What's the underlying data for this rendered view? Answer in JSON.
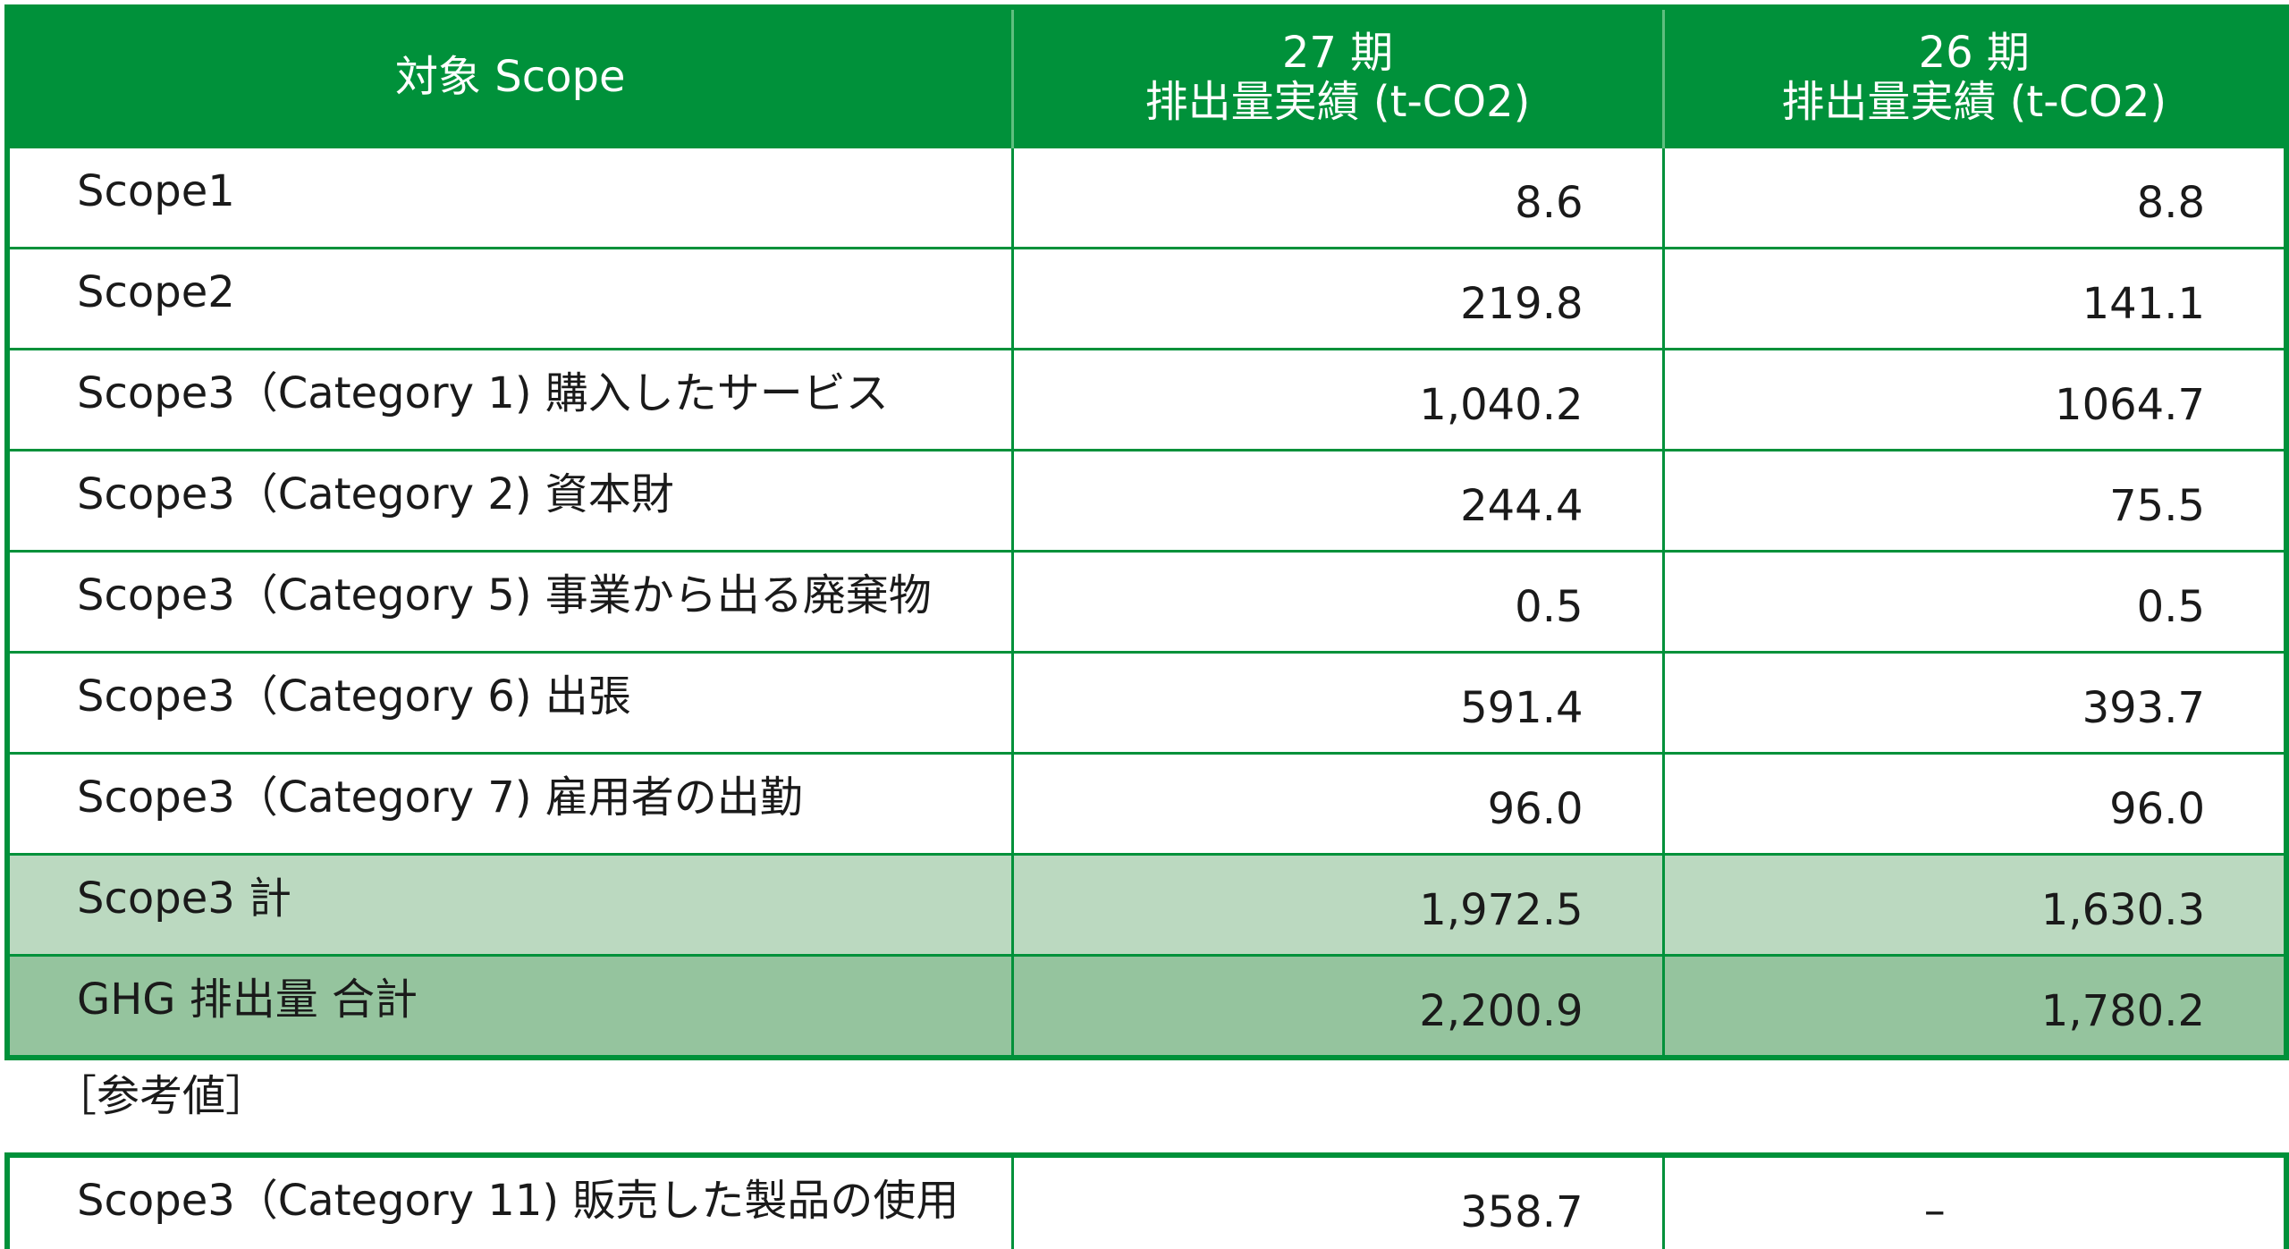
{
  "main_table": {
    "headers": {
      "col1": "対象 Scope",
      "col2_line1": "27 期",
      "col2_line2": "排出量実績 (t-CO2)",
      "col3_line1": "26 期",
      "col3_line2": "排出量実績 (t-CO2)"
    },
    "rows": [
      {
        "label": "Scope1",
        "p27": "8.6",
        "p26": "8.8"
      },
      {
        "label": "Scope2",
        "p27": "219.8",
        "p26": "141.1"
      },
      {
        "label": "Scope3（Category 1) 購入したサービス",
        "p27": "1,040.2",
        "p26": "1064.7"
      },
      {
        "label": "Scope3（Category 2) 資本財",
        "p27": "244.4",
        "p26": "75.5"
      },
      {
        "label": "Scope3（Category 5) 事業から出る廃棄物",
        "p27": "0.5",
        "p26": "0.5"
      },
      {
        "label": "Scope3（Category 6) 出張",
        "p27": "591.4",
        "p26": "393.7"
      },
      {
        "label": "Scope3（Category 7) 雇用者の出勤",
        "p27": "96.0",
        "p26": "96.0"
      }
    ],
    "subtotal": {
      "label": "Scope3 計",
      "p27": "1,972.5",
      "p26": "1,630.3"
    },
    "total": {
      "label": "GHG 排出量 合計",
      "p27": "2,200.9",
      "p26": "1,780.2"
    }
  },
  "reference": {
    "heading": "［参考値］",
    "row": {
      "label": "Scope3（Category 11) 販売した製品の使用",
      "p27": "358.7",
      "p26": "–"
    }
  },
  "colors": {
    "accent_green": "#00913a",
    "subtotal_fill": "#bbd9c0",
    "total_fill": "#95c49e"
  }
}
